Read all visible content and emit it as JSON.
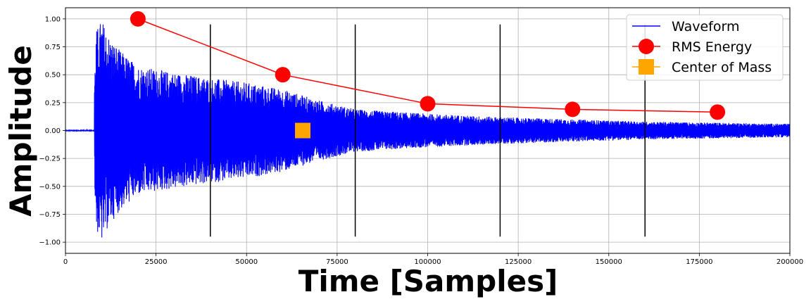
{
  "chart_data": {
    "type": "line",
    "title": "",
    "xlabel": "Time [Samples]",
    "ylabel": "Amplitude",
    "xlim": [
      0,
      200000
    ],
    "ylim": [
      -1.1,
      1.1
    ],
    "xticks": [
      0,
      25000,
      50000,
      75000,
      100000,
      125000,
      150000,
      175000,
      200000
    ],
    "xtick_labels": [
      "0",
      "25000",
      "50000",
      "75000",
      "100000",
      "125000",
      "150000",
      "175000",
      "200000"
    ],
    "yticks": [
      1.0,
      0.75,
      0.5,
      0.25,
      0.0,
      -0.25,
      -0.5,
      -0.75,
      -1.0
    ],
    "ytick_labels": [
      "1.00",
      "0.75",
      "0.50",
      "0.25",
      "0.00",
      "−0.25",
      "−0.50",
      "−0.75",
      "−1.00"
    ],
    "grid": true,
    "legend_position": "top-right",
    "vertical_markers": [
      40000,
      80000,
      120000,
      160000
    ],
    "series": [
      {
        "name": "Waveform",
        "color": "#0000ff",
        "kind": "waveform",
        "onset": 8000,
        "peak_amplitude": 1.0,
        "envelope_x": [
          0,
          7500,
          8500,
          10000,
          12000,
          15000,
          20000,
          30000,
          40000,
          50000,
          60000,
          70000,
          80000,
          100000,
          120000,
          140000,
          160000,
          180000,
          200000
        ],
        "envelope_y": [
          0.01,
          0.02,
          0.9,
          1.0,
          0.85,
          0.72,
          0.58,
          0.52,
          0.47,
          0.43,
          0.37,
          0.27,
          0.19,
          0.15,
          0.12,
          0.1,
          0.08,
          0.07,
          0.06
        ]
      },
      {
        "name": "RMS Energy",
        "color": "#ff0000",
        "kind": "line-markers",
        "x": [
          20000,
          60000,
          100000,
          140000,
          180000
        ],
        "y": [
          1.0,
          0.5,
          0.24,
          0.19,
          0.165
        ]
      },
      {
        "name": "Center of Mass",
        "color": "#ffa500",
        "kind": "marker",
        "x": [
          65500
        ],
        "y": [
          0.0
        ]
      }
    ]
  }
}
